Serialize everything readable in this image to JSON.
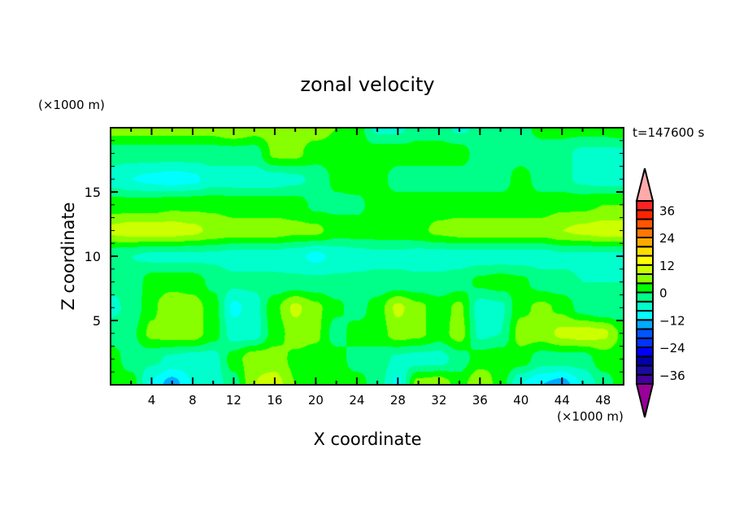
{
  "chart_data": {
    "type": "heatmap",
    "subtype": "filled-contour",
    "title": "zonal velocity",
    "xlabel": "X coordinate",
    "ylabel": "Z coordinate",
    "x_units": "(×1000 m)",
    "y_units": "(×1000 m)",
    "time_label": "t=147600 s",
    "xlim": [
      0,
      50
    ],
    "ylim": [
      0,
      20
    ],
    "x_ticks": [
      4,
      8,
      12,
      16,
      20,
      24,
      28,
      32,
      36,
      40,
      44,
      48
    ],
    "x_tick_labels": [
      "4",
      "8",
      "12",
      "16",
      "20",
      "24",
      "28",
      "32",
      "36",
      "40",
      "44",
      "48"
    ],
    "y_ticks": [
      5,
      10,
      15
    ],
    "y_tick_labels": [
      "5",
      "10",
      "15"
    ],
    "grid_x": [
      0,
      2,
      4,
      6,
      8,
      10,
      12,
      14,
      16,
      18,
      20,
      22,
      24,
      26,
      28,
      30,
      32,
      34,
      36,
      38,
      40,
      42,
      44,
      46,
      48,
      50
    ],
    "grid_z_top_to_bottom": [
      20,
      18,
      16,
      14,
      12,
      10,
      8,
      6,
      4,
      2,
      0
    ],
    "values": [
      [
        6,
        6,
        6,
        6,
        6,
        6,
        8,
        6,
        6,
        6,
        6,
        4,
        2,
        -5,
        -5,
        -2,
        -2,
        -5,
        -3,
        -2,
        -2,
        2,
        2,
        2,
        2,
        3
      ],
      [
        -2,
        -2,
        -2,
        -2,
        -2,
        -2,
        -2,
        -2,
        5,
        5,
        2,
        2,
        2,
        2,
        2,
        2,
        2,
        2,
        -2,
        -2,
        -2,
        -3,
        -3,
        -5,
        -5,
        -5
      ],
      [
        -6,
        -8,
        -9,
        -10,
        -9,
        -6,
        -6,
        -6,
        -6,
        -5,
        -3,
        1,
        2,
        2,
        -2,
        -2,
        -2,
        -2,
        -2,
        -2,
        2,
        -2,
        -3,
        -5,
        -6,
        -6
      ],
      [
        2,
        2,
        2,
        3,
        3,
        3,
        2,
        2,
        2,
        2,
        -1,
        -1,
        -1,
        2,
        2,
        2,
        2,
        2,
        2,
        2,
        2,
        2,
        3,
        3,
        4,
        4
      ],
      [
        9,
        10,
        10,
        10,
        9,
        7,
        6,
        6,
        6,
        5,
        5,
        2,
        2,
        2,
        2,
        3,
        5,
        6,
        6,
        6,
        6,
        6,
        8,
        9,
        10,
        10
      ],
      [
        -3,
        -4,
        -5,
        -5,
        -5,
        -5,
        -6,
        -6,
        -6,
        -7,
        -9,
        -7,
        -6,
        -5,
        -5,
        -6,
        -6,
        -6,
        -6,
        -6,
        -6,
        -6,
        -5,
        -5,
        -5,
        -5
      ],
      [
        -3,
        -3,
        2,
        2,
        2,
        -1,
        -3,
        -3,
        -3,
        -3,
        -3,
        -3,
        -3,
        -3,
        -3,
        -3,
        -3,
        -2,
        1,
        2,
        1,
        -2,
        -3,
        -4,
        -4,
        -4
      ],
      [
        -5,
        -3,
        3,
        8,
        6,
        2,
        -9,
        -6,
        3,
        9,
        5,
        1,
        -2,
        2,
        9,
        5,
        2,
        5,
        -6,
        -5,
        3,
        5,
        3,
        -2,
        -4,
        -4
      ],
      [
        -2,
        -1,
        5,
        6,
        6,
        2,
        -6,
        -6,
        2,
        6,
        5,
        -2,
        2,
        2,
        6,
        5,
        2,
        6,
        -5,
        -4,
        6,
        6,
        9,
        10,
        9,
        3
      ],
      [
        2,
        -2,
        -3,
        -5,
        -6,
        -6,
        2,
        7,
        6,
        3,
        2,
        2,
        -2,
        -2,
        -5,
        -6,
        -6,
        -2,
        2,
        3,
        2,
        -2,
        -2,
        -2,
        2,
        2
      ],
      [
        3,
        2,
        -9,
        -14,
        -8,
        -6,
        -2,
        8,
        10,
        4,
        2,
        2,
        2,
        -2,
        -9,
        6,
        7,
        2,
        8,
        2,
        -8,
        -12,
        -14,
        -8,
        -2,
        2
      ]
    ],
    "colorbar": {
      "levels_min": -40,
      "levels_max": 40,
      "level_step": 4,
      "labels": [
        "36",
        "24",
        "12",
        "0",
        "-12",
        "-24",
        "-36"
      ],
      "label_values": [
        36,
        24,
        12,
        0,
        -12,
        -24,
        -36
      ],
      "colors_low_to_high": [
        "#440099",
        "#1a0aa0",
        "#0000aa",
        "#0000ff",
        "#0033ff",
        "#0055ff",
        "#00aaff",
        "#00ffff",
        "#00ffcc",
        "#00ff88",
        "#00ff00",
        "#88ff00",
        "#ccff00",
        "#ffff00",
        "#ffdd00",
        "#ffaa00",
        "#ff7700",
        "#ff5500",
        "#ff2200",
        "#ff2222"
      ],
      "over_color": "#ffaaaa",
      "under_color": "#990099"
    }
  }
}
